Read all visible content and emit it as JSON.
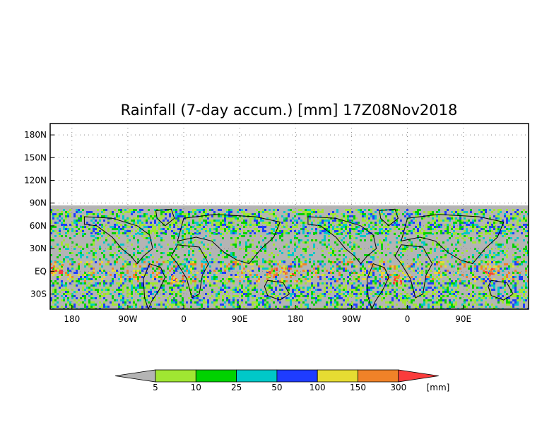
{
  "title": "Rainfall (7-day accum.) [mm] 17Z08Nov2018",
  "map": {
    "lat_ticks": [
      "180N",
      "150N",
      "120N",
      "90N",
      "60N",
      "30N",
      "EQ",
      "30S"
    ],
    "lon_ticks": [
      "180",
      "90W",
      "0",
      "90E",
      "180",
      "90W",
      "0",
      "90E"
    ],
    "lat_range": [
      -50,
      195
    ],
    "lon_extent_deg": 770,
    "data_lat_range": [
      -50,
      90
    ],
    "no_data_color": "#b4b4b4",
    "grid": "dotted",
    "coastlines": "black"
  },
  "colorbar": {
    "labels": [
      "5",
      "10",
      "25",
      "50",
      "100",
      "150",
      "300"
    ],
    "unit": "[mm]",
    "colors": [
      "#b4b4b4",
      "#a0e632",
      "#00d200",
      "#00c8c8",
      "#1e3cff",
      "#e6dc32",
      "#f08228",
      "#fa3c3c"
    ],
    "categories": [
      "<5",
      "5-10",
      "10-25",
      "25-50",
      "50-100",
      "100-150",
      "150-300",
      ">300"
    ]
  }
}
